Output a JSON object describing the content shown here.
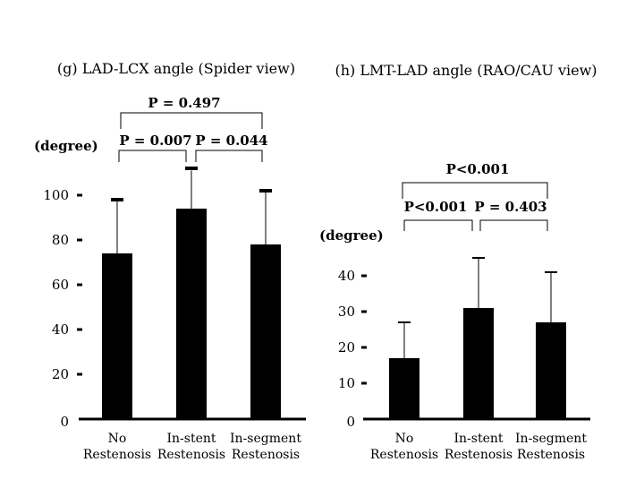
{
  "chart_data": [
    {
      "type": "bar",
      "title": "(g) LAD-LCX angle (Spider view)",
      "ylabel": "(degree)",
      "categories": [
        [
          "No",
          "Restenosis"
        ],
        [
          "In-stent",
          "Restenosis"
        ],
        [
          "In-segment",
          "Restenosis"
        ]
      ],
      "values": [
        74,
        94,
        78
      ],
      "error_upper": [
        98,
        111,
        102
      ],
      "error_cap": [
        true,
        false,
        true
      ],
      "ylim": [
        0,
        100
      ],
      "yticks": [
        "0",
        "20",
        "40",
        "60",
        "80",
        "100"
      ],
      "annotations": {
        "top": "P = 0.497",
        "left": "P = 0.007",
        "right": "P = 0.044"
      }
    },
    {
      "type": "bar",
      "title": "(h) LMT-LAD angle (RAO/CAU view)",
      "ylabel": "(degree)",
      "categories": [
        [
          "No",
          "Restenosis"
        ],
        [
          "In-stent",
          "Restenosis"
        ],
        [
          "In-segment",
          "Restenosis"
        ]
      ],
      "values": [
        17,
        31,
        27
      ],
      "error_upper": [
        27,
        45,
        41
      ],
      "error_cap": [
        true,
        true,
        true
      ],
      "ylim": [
        0,
        40
      ],
      "yticks": [
        "0",
        "10",
        "20",
        "30",
        "40"
      ],
      "annotations": {
        "top": "P<0.001",
        "left": "P<0.001",
        "right": "P = 0.403"
      }
    }
  ]
}
